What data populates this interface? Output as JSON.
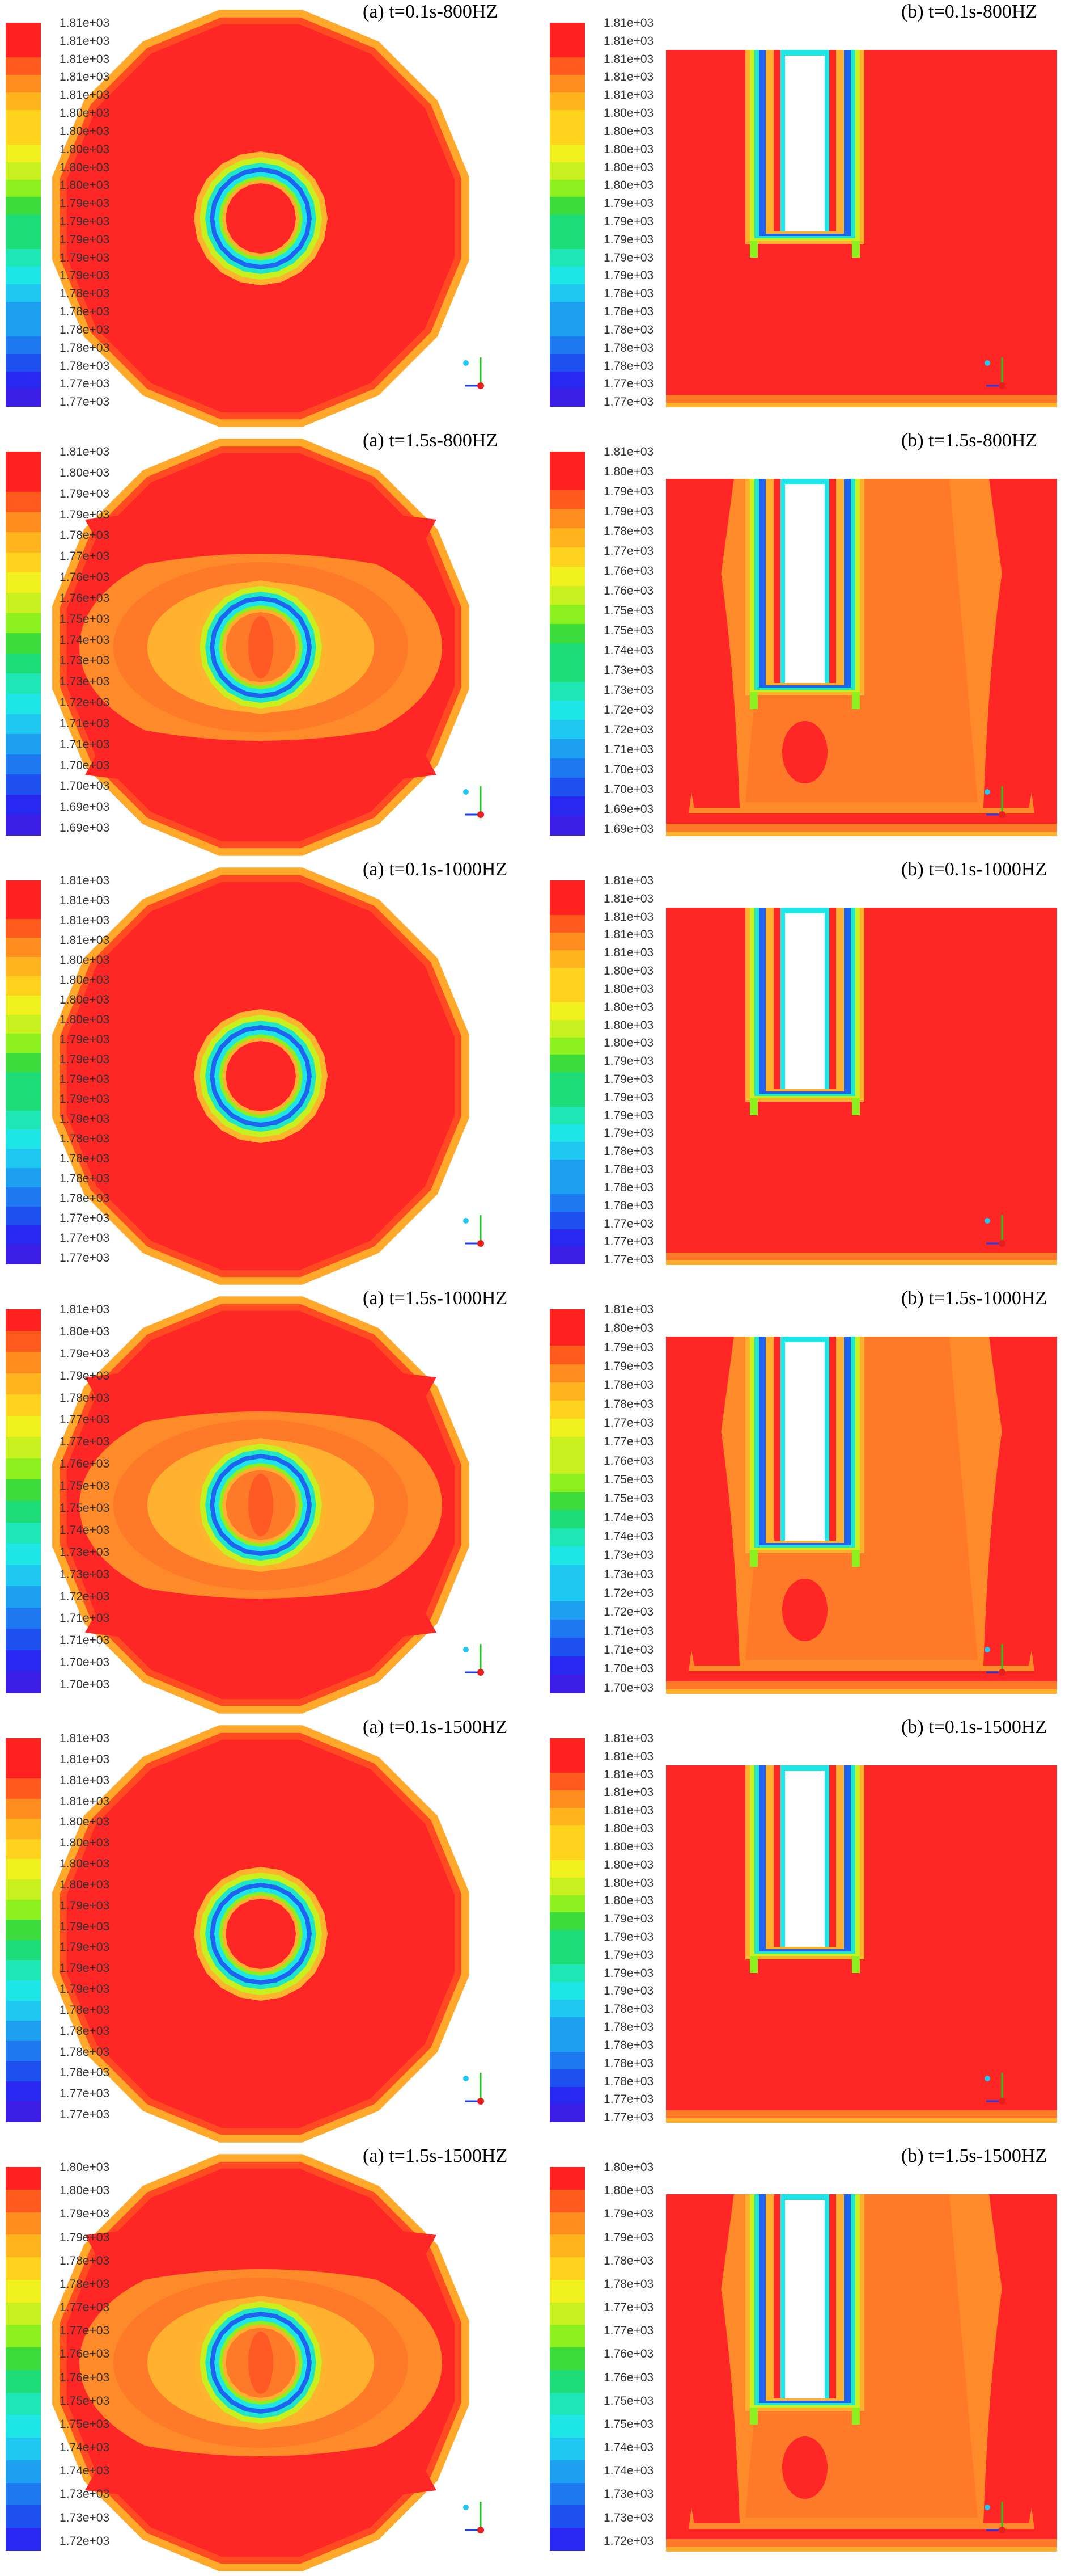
{
  "palette": [
    "#ff2020",
    "#ff5a1e",
    "#ff8c1e",
    "#ffb41e",
    "#ffd21e",
    "#f0f01e",
    "#c8f01e",
    "#8cf01e",
    "#3cdc3c",
    "#1edc78",
    "#1ee6b4",
    "#1ee6e6",
    "#1ec8f0",
    "#1ea0f0",
    "#1e78f0",
    "#1e50f0",
    "#2828f0",
    "#3c1ee6"
  ],
  "rows": [
    {
      "a": {
        "title": "(a) t=0.1s-800HZ",
        "ticks": [
          "1.81e+03",
          "1.81e+03",
          "1.81e+03",
          "1.81e+03",
          "1.81e+03",
          "1.80e+03",
          "1.80e+03",
          "1.80e+03",
          "1.80e+03",
          "1.80e+03",
          "1.79e+03",
          "1.79e+03",
          "1.79e+03",
          "1.79e+03",
          "1.79e+03",
          "1.78e+03",
          "1.78e+03",
          "1.78e+03",
          "1.78e+03",
          "1.78e+03",
          "1.77e+03",
          "1.77e+03"
        ],
        "pattern": "plain"
      },
      "b": {
        "title": "(b) t=0.1s-800HZ",
        "ticks": [
          "1.81e+03",
          "1.81e+03",
          "1.81e+03",
          "1.81e+03",
          "1.81e+03",
          "1.80e+03",
          "1.80e+03",
          "1.80e+03",
          "1.80e+03",
          "1.80e+03",
          "1.79e+03",
          "1.79e+03",
          "1.79e+03",
          "1.79e+03",
          "1.79e+03",
          "1.78e+03",
          "1.78e+03",
          "1.78e+03",
          "1.78e+03",
          "1.78e+03",
          "1.77e+03",
          "1.77e+03"
        ],
        "pattern": "plain"
      }
    },
    {
      "a": {
        "title": "(a) t=1.5s-800HZ",
        "ticks": [
          "1.81e+03",
          "1.80e+03",
          "1.79e+03",
          "1.79e+03",
          "1.78e+03",
          "1.77e+03",
          "1.76e+03",
          "1.76e+03",
          "1.75e+03",
          "1.74e+03",
          "1.73e+03",
          "1.73e+03",
          "1.72e+03",
          "1.71e+03",
          "1.71e+03",
          "1.70e+03",
          "1.70e+03",
          "1.69e+03",
          "1.69e+03"
        ],
        "pattern": "warm"
      },
      "b": {
        "title": "(b) t=1.5s-800HZ",
        "ticks": [
          "1.81e+03",
          "1.80e+03",
          "1.79e+03",
          "1.79e+03",
          "1.78e+03",
          "1.77e+03",
          "1.76e+03",
          "1.76e+03",
          "1.75e+03",
          "1.75e+03",
          "1.74e+03",
          "1.73e+03",
          "1.73e+03",
          "1.72e+03",
          "1.72e+03",
          "1.71e+03",
          "1.70e+03",
          "1.70e+03",
          "1.69e+03",
          "1.69e+03"
        ],
        "pattern": "warm"
      }
    },
    {
      "a": {
        "title": "(a) t=0.1s-1000HZ",
        "ticks": [
          "1.81e+03",
          "1.81e+03",
          "1.81e+03",
          "1.81e+03",
          "1.80e+03",
          "1.80e+03",
          "1.80e+03",
          "1.80e+03",
          "1.79e+03",
          "1.79e+03",
          "1.79e+03",
          "1.79e+03",
          "1.79e+03",
          "1.78e+03",
          "1.78e+03",
          "1.78e+03",
          "1.78e+03",
          "1.77e+03",
          "1.77e+03",
          "1.77e+03"
        ],
        "pattern": "plain"
      },
      "b": {
        "title": "(b) t=0.1s-1000HZ",
        "ticks": [
          "1.81e+03",
          "1.81e+03",
          "1.81e+03",
          "1.81e+03",
          "1.81e+03",
          "1.80e+03",
          "1.80e+03",
          "1.80e+03",
          "1.80e+03",
          "1.80e+03",
          "1.79e+03",
          "1.79e+03",
          "1.79e+03",
          "1.79e+03",
          "1.79e+03",
          "1.78e+03",
          "1.78e+03",
          "1.78e+03",
          "1.78e+03",
          "1.77e+03",
          "1.77e+03",
          "1.77e+03"
        ],
        "pattern": "plain"
      }
    },
    {
      "a": {
        "title": "(a) t=1.5s-1000HZ",
        "ticks": [
          "1.81e+03",
          "1.80e+03",
          "1.79e+03",
          "1.79e+03",
          "1.78e+03",
          "1.77e+03",
          "1.77e+03",
          "1.76e+03",
          "1.75e+03",
          "1.75e+03",
          "1.74e+03",
          "1.73e+03",
          "1.73e+03",
          "1.72e+03",
          "1.71e+03",
          "1.71e+03",
          "1.70e+03",
          "1.70e+03"
        ],
        "pattern": "warm"
      },
      "b": {
        "title": "(b) t=1.5s-1000HZ",
        "ticks": [
          "1.81e+03",
          "1.80e+03",
          "1.79e+03",
          "1.79e+03",
          "1.78e+03",
          "1.78e+03",
          "1.77e+03",
          "1.77e+03",
          "1.76e+03",
          "1.75e+03",
          "1.75e+03",
          "1.74e+03",
          "1.74e+03",
          "1.73e+03",
          "1.73e+03",
          "1.72e+03",
          "1.72e+03",
          "1.71e+03",
          "1.71e+03",
          "1.70e+03",
          "1.70e+03"
        ],
        "pattern": "warm"
      }
    },
    {
      "a": {
        "title": "(a) t=0.1s-1500HZ",
        "ticks": [
          "1.81e+03",
          "1.81e+03",
          "1.81e+03",
          "1.81e+03",
          "1.80e+03",
          "1.80e+03",
          "1.80e+03",
          "1.80e+03",
          "1.79e+03",
          "1.79e+03",
          "1.79e+03",
          "1.79e+03",
          "1.79e+03",
          "1.78e+03",
          "1.78e+03",
          "1.78e+03",
          "1.78e+03",
          "1.77e+03",
          "1.77e+03"
        ],
        "pattern": "plain"
      },
      "b": {
        "title": "(b) t=0.1s-1500HZ",
        "ticks": [
          "1.81e+03",
          "1.81e+03",
          "1.81e+03",
          "1.81e+03",
          "1.81e+03",
          "1.80e+03",
          "1.80e+03",
          "1.80e+03",
          "1.80e+03",
          "1.80e+03",
          "1.79e+03",
          "1.79e+03",
          "1.79e+03",
          "1.79e+03",
          "1.79e+03",
          "1.78e+03",
          "1.78e+03",
          "1.78e+03",
          "1.78e+03",
          "1.78e+03",
          "1.77e+03",
          "1.77e+03"
        ],
        "pattern": "plain"
      }
    },
    {
      "a": {
        "title": "(a) t=1.5s-1500HZ",
        "ticks": [
          "1.80e+03",
          "1.80e+03",
          "1.79e+03",
          "1.79e+03",
          "1.78e+03",
          "1.78e+03",
          "1.77e+03",
          "1.77e+03",
          "1.76e+03",
          "1.76e+03",
          "1.75e+03",
          "1.75e+03",
          "1.74e+03",
          "1.74e+03",
          "1.73e+03",
          "1.73e+03",
          "1.72e+03"
        ],
        "pattern": "warm"
      },
      "b": {
        "title": "(b) t=1.5s-1500HZ",
        "ticks": [
          "1.80e+03",
          "1.80e+03",
          "1.79e+03",
          "1.79e+03",
          "1.78e+03",
          "1.78e+03",
          "1.77e+03",
          "1.77e+03",
          "1.76e+03",
          "1.76e+03",
          "1.75e+03",
          "1.75e+03",
          "1.74e+03",
          "1.74e+03",
          "1.73e+03",
          "1.73e+03",
          "1.72e+03"
        ],
        "pattern": "warm"
      }
    }
  ]
}
